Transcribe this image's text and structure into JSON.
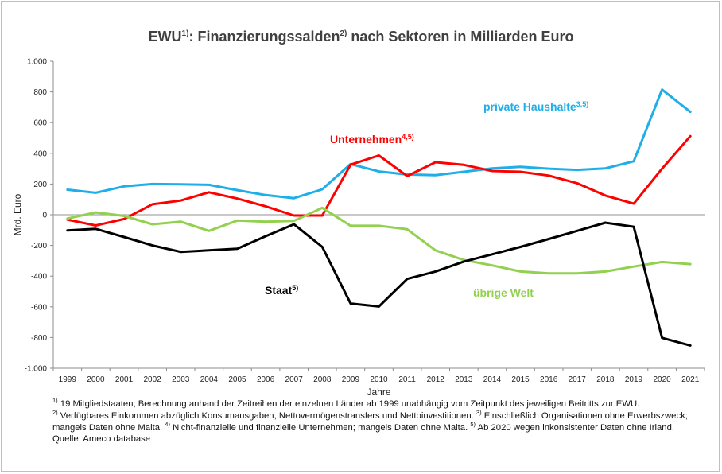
{
  "title": {
    "part1": "EWU",
    "sup1": "1)",
    "part2": ": Finanzierungssalden",
    "sup2": "2)",
    "part3": " nach Sektoren in Milliarden Euro"
  },
  "chart_data": {
    "type": "line",
    "x": [
      "1999",
      "2000",
      "2001",
      "2002",
      "2003",
      "2004",
      "2005",
      "2006",
      "2007",
      "2008",
      "2009",
      "2010",
      "2011",
      "2012",
      "2013",
      "2014",
      "2015",
      "2016",
      "2017",
      "2018",
      "2019",
      "2020",
      "2021"
    ],
    "xlabel": "Jahre",
    "ylabel": "Mrd. Euro",
    "ylim": [
      -1000,
      1000
    ],
    "yticks": [
      -1000,
      -800,
      -600,
      -400,
      -200,
      0,
      200,
      400,
      600,
      800,
      1000
    ],
    "ytick_labels": [
      "-1.000",
      "-800",
      "-600",
      "-400",
      "-200",
      "0",
      "200",
      "400",
      "600",
      "800",
      "1.000"
    ],
    "grid": false,
    "series": [
      {
        "key": "haushalte",
        "name": "private Haushalte",
        "sup": "3,5)",
        "color": "#1eaee8",
        "values": [
          163,
          143,
          185,
          200,
          198,
          195,
          160,
          128,
          108,
          166,
          330,
          282,
          262,
          258,
          280,
          302,
          312,
          300,
          292,
          302,
          348,
          815,
          670
        ]
      },
      {
        "key": "unternehmen",
        "name": "Unternehmen",
        "sup": "4,5)",
        "color": "#ff0000",
        "values": [
          -32,
          -70,
          -28,
          68,
          92,
          146,
          105,
          55,
          -5,
          -5,
          326,
          386,
          252,
          342,
          325,
          285,
          280,
          255,
          205,
          125,
          72,
          300,
          512
        ]
      },
      {
        "key": "welt",
        "name": "übrige Welt",
        "sup": "",
        "color": "#92d050",
        "values": [
          -25,
          15,
          -8,
          -62,
          -45,
          -105,
          -38,
          -45,
          -40,
          45,
          -72,
          -72,
          -95,
          -232,
          -295,
          -330,
          -370,
          -382,
          -382,
          -370,
          -338,
          -308,
          -322
        ]
      },
      {
        "key": "staat",
        "name": "Staat",
        "sup": "5)",
        "color": "#000000",
        "values": [
          -102,
          -92,
          -145,
          -200,
          -242,
          -232,
          -222,
          -140,
          -62,
          -210,
          -578,
          -598,
          -418,
          -370,
          -305,
          -258,
          -210,
          -158,
          -105,
          -52,
          -78,
          -802,
          -852
        ]
      }
    ]
  },
  "footnotes": {
    "n1_sup": "1)",
    "n1": " 19 Mitgliedstaaten; Berechnung anhand der Zeitreihen der einzelnen Länder ab 1999 unabhängig vom Zeitpunkt des jeweiligen Beitritts zur EWU.",
    "n2_sup": "2)",
    "n2": " Verfügbares Einkommen abzüglich Konsumausgaben, Nettovermögenstransfers und Nettoinvestitionen. ",
    "n3_sup": "3)",
    "n3": " Einschließlich Organisationen ohne Erwerbszweck; mangels Daten ohne Malta. ",
    "n4_sup": "4)",
    "n4": " Nicht-finanzielle und finanzielle Unternehmen; mangels Daten ohne Malta. ",
    "n5_sup": "5)",
    "n5": " Ab 2020 wegen inkonsistenter Daten ohne Irland.",
    "source": "Quelle: Ameco database"
  }
}
